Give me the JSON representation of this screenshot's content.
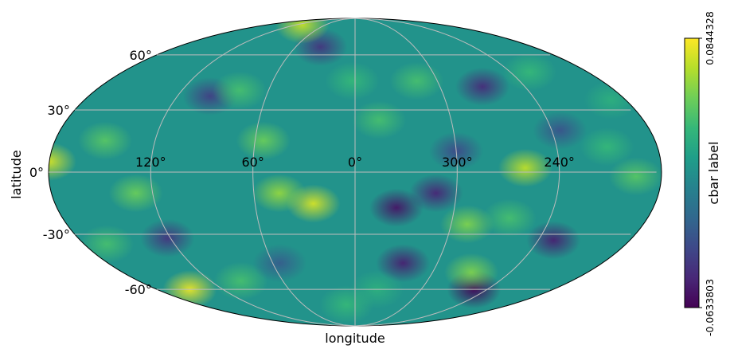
{
  "chart_data": {
    "type": "heatmap",
    "projection": "mollweide",
    "xlabel": "longitude",
    "ylabel": "latitude",
    "grid": true,
    "lon_ticks": [
      {
        "lon": 120,
        "label": "120°"
      },
      {
        "lon": 60,
        "label": "60°"
      },
      {
        "lon": 0,
        "label": "0°"
      },
      {
        "lon": 300,
        "label": "300°"
      },
      {
        "lon": 240,
        "label": "240°"
      }
    ],
    "lat_ticks": [
      {
        "lat": 60,
        "label": "60°"
      },
      {
        "lat": 30,
        "label": "30°"
      },
      {
        "lat": 0,
        "label": "0°"
      },
      {
        "lat": -30,
        "label": "-30°"
      },
      {
        "lat": -60,
        "label": "-60°"
      }
    ],
    "colorbar": {
      "label": "cbar label",
      "min": -0.0633803,
      "max": 0.0844328,
      "min_label": "-0.0633803",
      "max_label": "0.0844328",
      "colormap": "viridis"
    },
    "field_features": [
      {
        "lon": 180,
        "lat": 5,
        "value": 0.075
      },
      {
        "lon": 260,
        "lat": 2,
        "value": 0.07
      },
      {
        "lon": 25,
        "lat": -15,
        "value": 0.075
      },
      {
        "lon": 45,
        "lat": -10,
        "value": 0.06
      },
      {
        "lon": 35,
        "lat": 65,
        "value": -0.04
      },
      {
        "lon": 110,
        "lat": 82,
        "value": 0.072
      },
      {
        "lon": 150,
        "lat": -60,
        "value": 0.08
      },
      {
        "lon": 335,
        "lat": -17,
        "value": -0.055
      },
      {
        "lon": 325,
        "lat": -45,
        "value": -0.05
      },
      {
        "lon": 312,
        "lat": -10,
        "value": -0.048
      },
      {
        "lon": 252,
        "lat": -60,
        "value": -0.062
      },
      {
        "lon": 230,
        "lat": -33,
        "value": -0.05
      },
      {
        "lon": 122,
        "lat": -32,
        "value": -0.04
      },
      {
        "lon": 270,
        "lat": 42,
        "value": -0.045
      },
      {
        "lon": 98,
        "lat": 37,
        "value": -0.035
      },
      {
        "lon": 290,
        "lat": -25,
        "value": 0.055
      },
      {
        "lon": 270,
        "lat": -50,
        "value": 0.055
      },
      {
        "lon": 195,
        "lat": -2,
        "value": 0.045
      },
      {
        "lon": 55,
        "lat": 15,
        "value": 0.05
      },
      {
        "lon": 80,
        "lat": 40,
        "value": 0.04
      },
      {
        "lon": 345,
        "lat": 25,
        "value": 0.04
      },
      {
        "lon": 315,
        "lat": 45,
        "value": 0.04
      },
      {
        "lon": 150,
        "lat": 15,
        "value": 0.045
      },
      {
        "lon": 130,
        "lat": -10,
        "value": 0.05
      },
      {
        "lon": 210,
        "lat": 12,
        "value": 0.035
      },
      {
        "lon": 2,
        "lat": 45,
        "value": 0.035
      },
      {
        "lon": 300,
        "lat": 10,
        "value": -0.03
      },
      {
        "lon": 265,
        "lat": -22,
        "value": 0.04
      },
      {
        "lon": 165,
        "lat": -35,
        "value": 0.04
      },
      {
        "lon": 95,
        "lat": -55,
        "value": 0.04
      },
      {
        "lon": 225,
        "lat": 50,
        "value": 0.035
      },
      {
        "lon": 190,
        "lat": 35,
        "value": 0.03
      },
      {
        "lon": 340,
        "lat": -60,
        "value": 0.03
      },
      {
        "lon": 55,
        "lat": -45,
        "value": -0.02
      },
      {
        "lon": 235,
        "lat": 20,
        "value": -0.025
      },
      {
        "lon": 10,
        "lat": -70,
        "value": 0.035
      }
    ]
  }
}
